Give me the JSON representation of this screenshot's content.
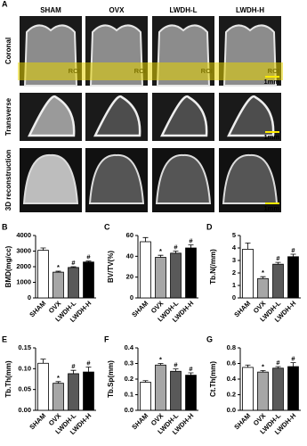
{
  "image_panel": {
    "label": "A",
    "columns": [
      "SHAM",
      "OVX",
      "LWDH-L",
      "LWDH-H"
    ],
    "rows": [
      "Coronal",
      "Transverse",
      "3D reconstruction"
    ],
    "roi_labels": [
      "ROI",
      "ROI",
      "ROI",
      "ROI"
    ],
    "scale_bars": [
      "1mm",
      "1mm",
      "1mm"
    ]
  },
  "chart_data": [
    {
      "type": "bar",
      "panel": "B",
      "y_label": "BMD(mg/cc)",
      "categories": [
        "SHAM",
        "OVX",
        "LWDH-L",
        "LWDH-H"
      ],
      "values": [
        3050,
        1650,
        1950,
        2300
      ],
      "errors": [
        150,
        60,
        50,
        60
      ],
      "annotations": [
        null,
        "*",
        "#",
        "#"
      ],
      "colors": [
        "#ffffff",
        "#a6a6a6",
        "#595959",
        "#000000"
      ],
      "ylim": [
        0,
        4000
      ],
      "yticks": [
        0,
        1000,
        2000,
        3000,
        4000
      ]
    },
    {
      "type": "bar",
      "panel": "C",
      "y_label": "BV/TV(%)",
      "categories": [
        "SHAM",
        "OVX",
        "LWDH-L",
        "LWDH-H"
      ],
      "values": [
        54,
        39,
        43,
        48
      ],
      "errors": [
        4,
        2,
        2,
        3
      ],
      "annotations": [
        null,
        "*",
        "#",
        "#"
      ],
      "colors": [
        "#ffffff",
        "#a6a6a6",
        "#595959",
        "#000000"
      ],
      "ylim": [
        0,
        60
      ],
      "yticks": [
        0,
        20,
        40,
        60
      ]
    },
    {
      "type": "bar",
      "panel": "D",
      "y_label": "Tb.N(/mm)",
      "categories": [
        "SHAM",
        "OVX",
        "LWDH-L",
        "LWDH-H"
      ],
      "values": [
        3.9,
        1.55,
        2.7,
        3.3
      ],
      "errors": [
        0.5,
        0.15,
        0.15,
        0.2
      ],
      "annotations": [
        null,
        "*",
        "#",
        "#"
      ],
      "colors": [
        "#ffffff",
        "#a6a6a6",
        "#595959",
        "#000000"
      ],
      "ylim": [
        0,
        5
      ],
      "yticks": [
        0,
        1,
        2,
        3,
        4,
        5
      ]
    },
    {
      "type": "bar",
      "panel": "E",
      "y_label": "Tb.Th(mm)",
      "categories": [
        "SHAM",
        "OVX",
        "LWDH-L",
        "LWDH-H"
      ],
      "values": [
        0.113,
        0.065,
        0.088,
        0.092
      ],
      "errors": [
        0.01,
        0.004,
        0.008,
        0.012
      ],
      "annotations": [
        null,
        "*",
        "#",
        "#"
      ],
      "colors": [
        "#ffffff",
        "#a6a6a6",
        "#595959",
        "#000000"
      ],
      "ylim": [
        0,
        0.15
      ],
      "yticks": [
        {
          "value": 0,
          "label": "0.00"
        },
        0.05,
        {
          "value": 0.1,
          "label": "0.10"
        },
        0.15
      ]
    },
    {
      "type": "bar",
      "panel": "F",
      "y_label": "Tb.Sp(mm)",
      "categories": [
        "SHAM",
        "OVX",
        "LWDH-L",
        "LWDH-H"
      ],
      "values": [
        0.18,
        0.29,
        0.25,
        0.225
      ],
      "errors": [
        0.01,
        0.01,
        0.015,
        0.015
      ],
      "annotations": [
        null,
        "*",
        "#",
        "#"
      ],
      "colors": [
        "#ffffff",
        "#a6a6a6",
        "#595959",
        "#000000"
      ],
      "ylim": [
        0,
        0.4
      ],
      "yticks": [
        {
          "value": 0,
          "label": "0.0"
        },
        0.1,
        0.2,
        0.3,
        0.4
      ]
    },
    {
      "type": "bar",
      "panel": "G",
      "y_label": "Ct.Th(mm)",
      "categories": [
        "SHAM",
        "OVX",
        "LWDH-L",
        "LWDH-H"
      ],
      "values": [
        0.55,
        0.49,
        0.54,
        0.56
      ],
      "errors": [
        0.03,
        0.02,
        0.02,
        0.05
      ],
      "annotations": [
        null,
        "*",
        "#",
        "#"
      ],
      "colors": [
        "#ffffff",
        "#a6a6a6",
        "#595959",
        "#000000"
      ],
      "ylim": [
        0,
        0.8
      ],
      "yticks": [
        {
          "value": 0,
          "label": "0.0"
        },
        0.2,
        0.4,
        0.6,
        0.8
      ]
    }
  ]
}
